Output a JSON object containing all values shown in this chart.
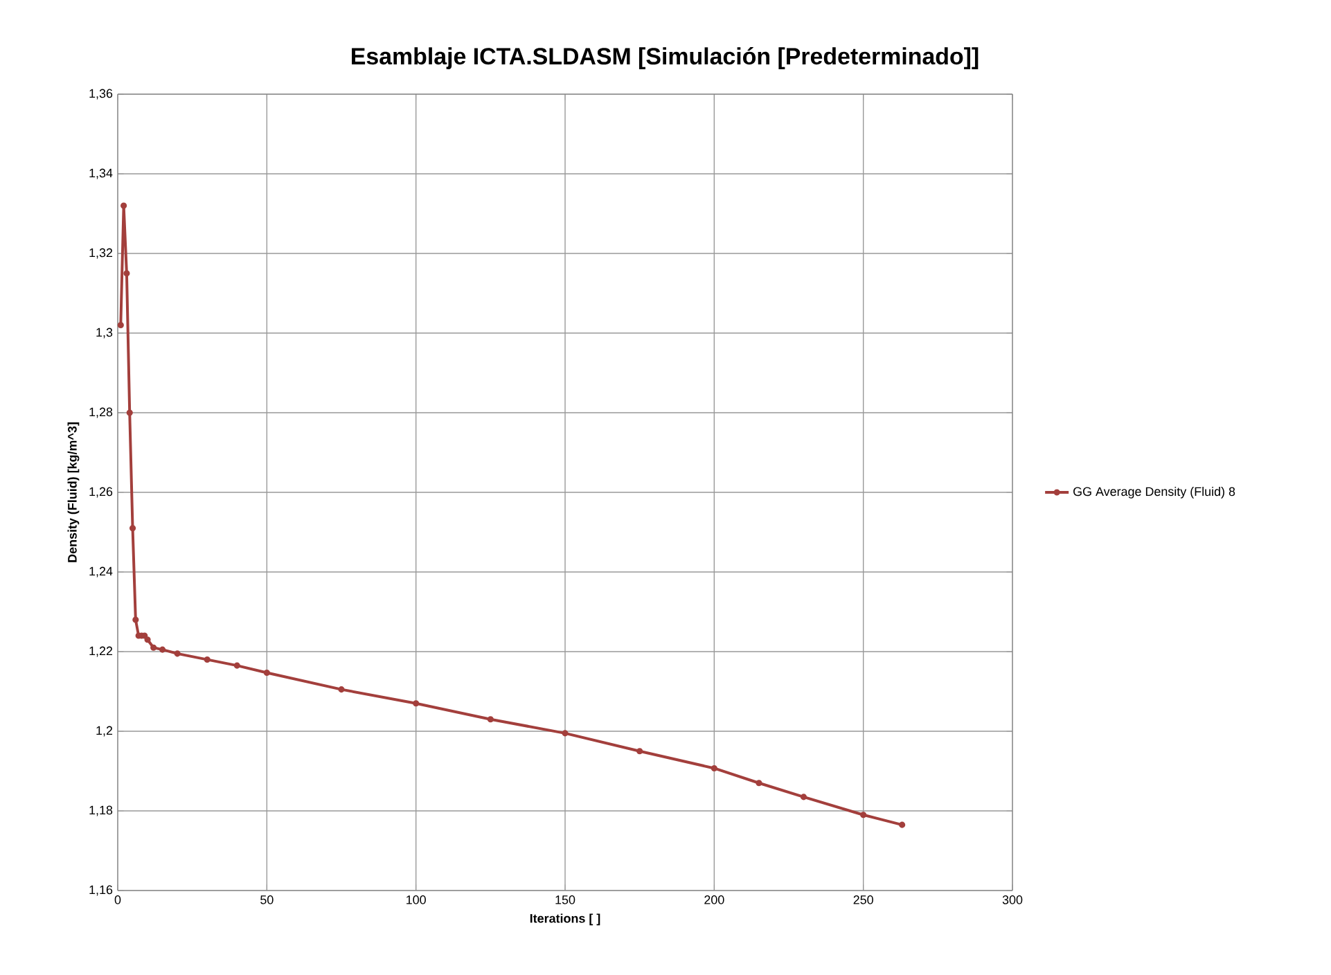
{
  "chart_data": {
    "type": "line",
    "title": "Esamblaje ICTA.SLDASM [Simulación [Predeterminado]]",
    "xlabel": "Iterations [ ]",
    "ylabel": "Density (Fluid) [kg/m^3]",
    "x": [
      1,
      2,
      3,
      4,
      5,
      6,
      7,
      8,
      9,
      10,
      12,
      15,
      20,
      30,
      40,
      50,
      75,
      100,
      125,
      150,
      175,
      200,
      215,
      230,
      250,
      263
    ],
    "series": [
      {
        "name": "GG Average Density (Fluid) 8",
        "color": "#a33f3c",
        "values": [
          1.302,
          1.332,
          1.315,
          1.28,
          1.251,
          1.228,
          1.224,
          1.224,
          1.224,
          1.223,
          1.221,
          1.2205,
          1.2195,
          1.218,
          1.2165,
          1.2147,
          1.2105,
          1.207,
          1.203,
          1.1995,
          1.195,
          1.1907,
          1.187,
          1.1835,
          1.179,
          1.1765
        ]
      }
    ],
    "xlim": [
      0,
      300
    ],
    "ylim": [
      1.16,
      1.36
    ],
    "xticks": [
      0,
      50,
      100,
      150,
      200,
      250,
      300
    ],
    "yticks": [
      {
        "value": 1.16,
        "label": "1,16"
      },
      {
        "value": 1.18,
        "label": "1,18"
      },
      {
        "value": 1.2,
        "label": "1,2"
      },
      {
        "value": 1.22,
        "label": "1,22"
      },
      {
        "value": 1.24,
        "label": "1,24"
      },
      {
        "value": 1.26,
        "label": "1,26"
      },
      {
        "value": 1.28,
        "label": "1,28"
      },
      {
        "value": 1.3,
        "label": "1,3"
      },
      {
        "value": 1.32,
        "label": "1,32"
      },
      {
        "value": 1.34,
        "label": "1,34"
      },
      {
        "value": 1.36,
        "label": "1,36"
      }
    ],
    "grid": true,
    "legend": "right",
    "marker": "circle",
    "line_style": "solid"
  }
}
